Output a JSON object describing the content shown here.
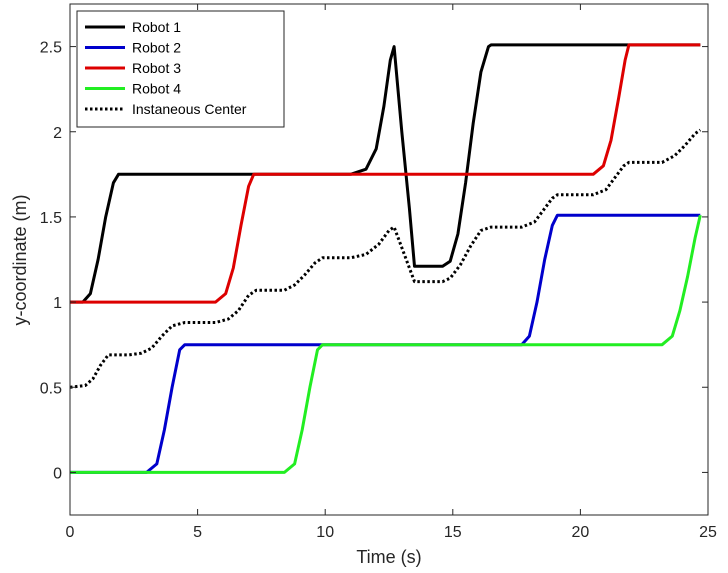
{
  "chart_data": {
    "type": "line",
    "xlabel": "Time (s)",
    "ylabel": "y-coordinate (m)",
    "xlim": [
      0,
      25
    ],
    "ylim": [
      -0.25,
      2.75
    ],
    "xticks": [
      0,
      5,
      10,
      15,
      20,
      25
    ],
    "xtick_labels": [
      "0",
      "5",
      "10",
      "15",
      "20",
      "25"
    ],
    "yticks": [
      0,
      0.5,
      1,
      1.5,
      2,
      2.5
    ],
    "ytick_labels": [
      "0",
      "0.5",
      "1",
      "1.5",
      "2",
      "2.5"
    ],
    "grid": false,
    "legend_position": "top-left",
    "series": [
      {
        "name": "Robot 1",
        "color": "#000000",
        "style": "solid",
        "points": [
          [
            0,
            1.0
          ],
          [
            0.5,
            1.0
          ],
          [
            0.8,
            1.05
          ],
          [
            1.1,
            1.25
          ],
          [
            1.4,
            1.5
          ],
          [
            1.7,
            1.7
          ],
          [
            1.9,
            1.75
          ],
          [
            11.0,
            1.75
          ],
          [
            11.6,
            1.78
          ],
          [
            12.0,
            1.9
          ],
          [
            12.3,
            2.15
          ],
          [
            12.55,
            2.42
          ],
          [
            12.7,
            2.5
          ],
          [
            13.0,
            2.0
          ],
          [
            13.3,
            1.55
          ],
          [
            13.5,
            1.21
          ],
          [
            14.6,
            1.21
          ],
          [
            14.9,
            1.24
          ],
          [
            15.2,
            1.4
          ],
          [
            15.5,
            1.7
          ],
          [
            15.8,
            2.05
          ],
          [
            16.1,
            2.35
          ],
          [
            16.4,
            2.5
          ],
          [
            16.5,
            2.51
          ],
          [
            24.7,
            2.51
          ]
        ]
      },
      {
        "name": "Robot 2",
        "color": "#0000cc",
        "style": "solid",
        "points": [
          [
            0,
            0.0
          ],
          [
            3.0,
            0.0
          ],
          [
            3.4,
            0.05
          ],
          [
            3.7,
            0.25
          ],
          [
            4.0,
            0.5
          ],
          [
            4.3,
            0.72
          ],
          [
            4.5,
            0.75
          ],
          [
            17.7,
            0.75
          ],
          [
            18.0,
            0.8
          ],
          [
            18.3,
            1.0
          ],
          [
            18.6,
            1.25
          ],
          [
            18.9,
            1.45
          ],
          [
            19.1,
            1.51
          ],
          [
            24.7,
            1.51
          ]
        ]
      },
      {
        "name": "Robot 3",
        "color": "#dd0000",
        "style": "solid",
        "points": [
          [
            0,
            1.0
          ],
          [
            5.7,
            1.0
          ],
          [
            6.1,
            1.05
          ],
          [
            6.4,
            1.2
          ],
          [
            6.7,
            1.45
          ],
          [
            7.0,
            1.68
          ],
          [
            7.2,
            1.75
          ],
          [
            20.5,
            1.75
          ],
          [
            20.9,
            1.8
          ],
          [
            21.2,
            1.95
          ],
          [
            21.5,
            2.2
          ],
          [
            21.75,
            2.42
          ],
          [
            21.9,
            2.51
          ],
          [
            24.7,
            2.51
          ]
        ]
      },
      {
        "name": "Robot 4",
        "color": "#22ee22",
        "style": "solid",
        "points": [
          [
            0,
            0.0
          ],
          [
            8.4,
            0.0
          ],
          [
            8.8,
            0.05
          ],
          [
            9.1,
            0.25
          ],
          [
            9.4,
            0.5
          ],
          [
            9.7,
            0.72
          ],
          [
            9.9,
            0.75
          ],
          [
            23.2,
            0.75
          ],
          [
            23.6,
            0.8
          ],
          [
            23.9,
            0.95
          ],
          [
            24.2,
            1.15
          ],
          [
            24.5,
            1.38
          ],
          [
            24.7,
            1.51
          ]
        ]
      },
      {
        "name": "Instaneous Center",
        "color": "#000000",
        "style": "dotted",
        "points": [
          [
            0,
            0.5
          ],
          [
            0.6,
            0.51
          ],
          [
            0.9,
            0.55
          ],
          [
            1.2,
            0.63
          ],
          [
            1.5,
            0.69
          ],
          [
            2.3,
            0.69
          ],
          [
            2.8,
            0.7
          ],
          [
            3.2,
            0.73
          ],
          [
            3.6,
            0.8
          ],
          [
            4.0,
            0.86
          ],
          [
            4.5,
            0.88
          ],
          [
            5.7,
            0.88
          ],
          [
            6.2,
            0.9
          ],
          [
            6.6,
            0.95
          ],
          [
            7.0,
            1.04
          ],
          [
            7.3,
            1.07
          ],
          [
            8.4,
            1.07
          ],
          [
            8.8,
            1.1
          ],
          [
            9.2,
            1.16
          ],
          [
            9.6,
            1.23
          ],
          [
            9.9,
            1.26
          ],
          [
            11.0,
            1.26
          ],
          [
            11.6,
            1.28
          ],
          [
            12.1,
            1.34
          ],
          [
            12.5,
            1.42
          ],
          [
            12.7,
            1.44
          ],
          [
            13.0,
            1.32
          ],
          [
            13.3,
            1.2
          ],
          [
            13.5,
            1.12
          ],
          [
            14.6,
            1.12
          ],
          [
            14.9,
            1.14
          ],
          [
            15.3,
            1.22
          ],
          [
            15.7,
            1.33
          ],
          [
            16.1,
            1.42
          ],
          [
            16.5,
            1.44
          ],
          [
            17.7,
            1.44
          ],
          [
            18.2,
            1.47
          ],
          [
            18.6,
            1.55
          ],
          [
            18.9,
            1.61
          ],
          [
            19.1,
            1.63
          ],
          [
            20.5,
            1.63
          ],
          [
            21.0,
            1.66
          ],
          [
            21.4,
            1.74
          ],
          [
            21.7,
            1.8
          ],
          [
            21.9,
            1.82
          ],
          [
            23.2,
            1.82
          ],
          [
            23.7,
            1.86
          ],
          [
            24.1,
            1.92
          ],
          [
            24.5,
            1.99
          ],
          [
            24.7,
            2.01
          ]
        ]
      }
    ]
  }
}
